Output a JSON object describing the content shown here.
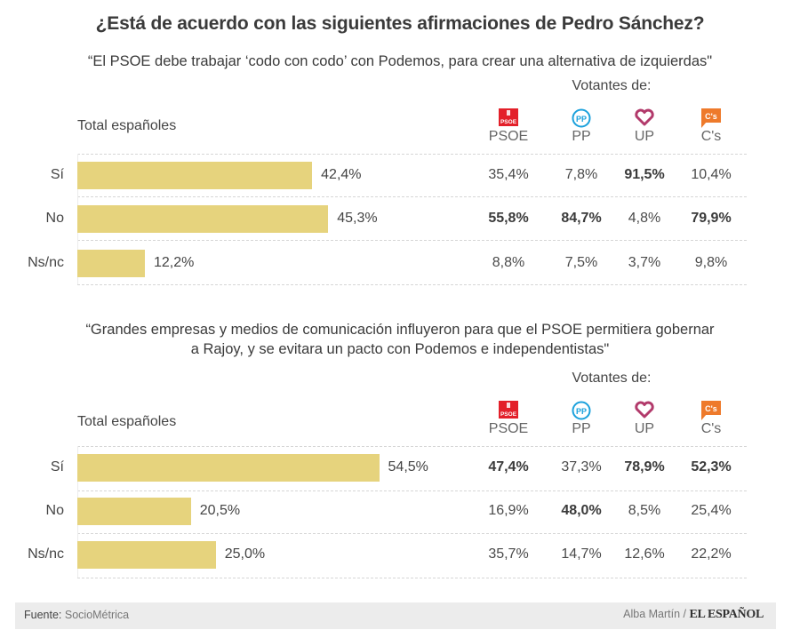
{
  "title": "¿Está de acuerdo con las siguientes afirmaciones de Pedro Sánchez?",
  "colors": {
    "bar": "#e6d37d",
    "psoe": "#e3202a",
    "pp": "#1ba1dc",
    "up": "#6a3d8f",
    "cs": "#ee7a2b"
  },
  "parties": [
    {
      "name": "PSOE",
      "icon": "psoe-logo-icon"
    },
    {
      "name": "PP",
      "icon": "pp-logo-icon"
    },
    {
      "name": "UP",
      "icon": "up-heart-logo-icon"
    },
    {
      "name": "C's",
      "icon": "cs-logo-icon"
    }
  ],
  "icon_text": {
    "psoe": "PSOE",
    "pp": "PP",
    "cs": "C's"
  },
  "votantes_label": "Votantes de:",
  "total_label": "Total españoles",
  "footer": {
    "source_label": "Fuente:",
    "source": "SocioMétrica",
    "author": "Alba Martín /",
    "brand": "EL ESPAÑOL"
  },
  "chart_data": [
    {
      "type": "bar",
      "orientation": "horizontal",
      "title": "“El PSOE debe trabajar ‘codo con codo’ con Podemos, para crear una alternativa de izquierdas\"",
      "categories": [
        "Sí",
        "No",
        "Ns/nc"
      ],
      "values": [
        42.4,
        45.3,
        12.2
      ],
      "value_labels": [
        "42,4%",
        "45,3%",
        "12,2%"
      ],
      "series_label": "Total españoles",
      "xlim": [
        0,
        100
      ],
      "table": {
        "columns": [
          "PSOE",
          "PP",
          "UP",
          "C's"
        ],
        "rows": [
          {
            "category": "Sí",
            "values": [
              "35,4%",
              "7,8%",
              "91,5%",
              "10,4%"
            ],
            "bold": [
              false,
              false,
              true,
              false
            ]
          },
          {
            "category": "No",
            "values": [
              "55,8%",
              "84,7%",
              "4,8%",
              "79,9%"
            ],
            "bold": [
              true,
              true,
              false,
              true
            ]
          },
          {
            "category": "Ns/nc",
            "values": [
              "8,8%",
              "7,5%",
              "3,7%",
              "9,8%"
            ],
            "bold": [
              false,
              false,
              false,
              false
            ]
          }
        ]
      }
    },
    {
      "type": "bar",
      "orientation": "horizontal",
      "title": "“Grandes empresas y medios de comunicación influyeron para que el PSOE permitiera gobernar a Rajoy, y se evitara un pacto con Podemos e independentistas\"",
      "title_lines": [
        "“Grandes empresas y medios de comunicación influyeron para que el PSOE permitiera gobernar",
        "a Rajoy, y se evitara un pacto con Podemos e independentistas\""
      ],
      "categories": [
        "Sí",
        "No",
        "Ns/nc"
      ],
      "values": [
        54.5,
        20.5,
        25.0
      ],
      "value_labels": [
        "54,5%",
        "20,5%",
        "25,0%"
      ],
      "series_label": "Total españoles",
      "xlim": [
        0,
        100
      ],
      "table": {
        "columns": [
          "PSOE",
          "PP",
          "UP",
          "C's"
        ],
        "rows": [
          {
            "category": "Sí",
            "values": [
              "47,4%",
              "37,3%",
              "78,9%",
              "52,3%"
            ],
            "bold": [
              true,
              false,
              true,
              true
            ]
          },
          {
            "category": "No",
            "values": [
              "16,9%",
              "48,0%",
              "8,5%",
              "25,4%"
            ],
            "bold": [
              false,
              true,
              false,
              false
            ]
          },
          {
            "category": "Ns/nc",
            "values": [
              "35,7%",
              "14,7%",
              "12,6%",
              "22,2%"
            ],
            "bold": [
              false,
              false,
              false,
              false
            ]
          }
        ]
      }
    }
  ]
}
